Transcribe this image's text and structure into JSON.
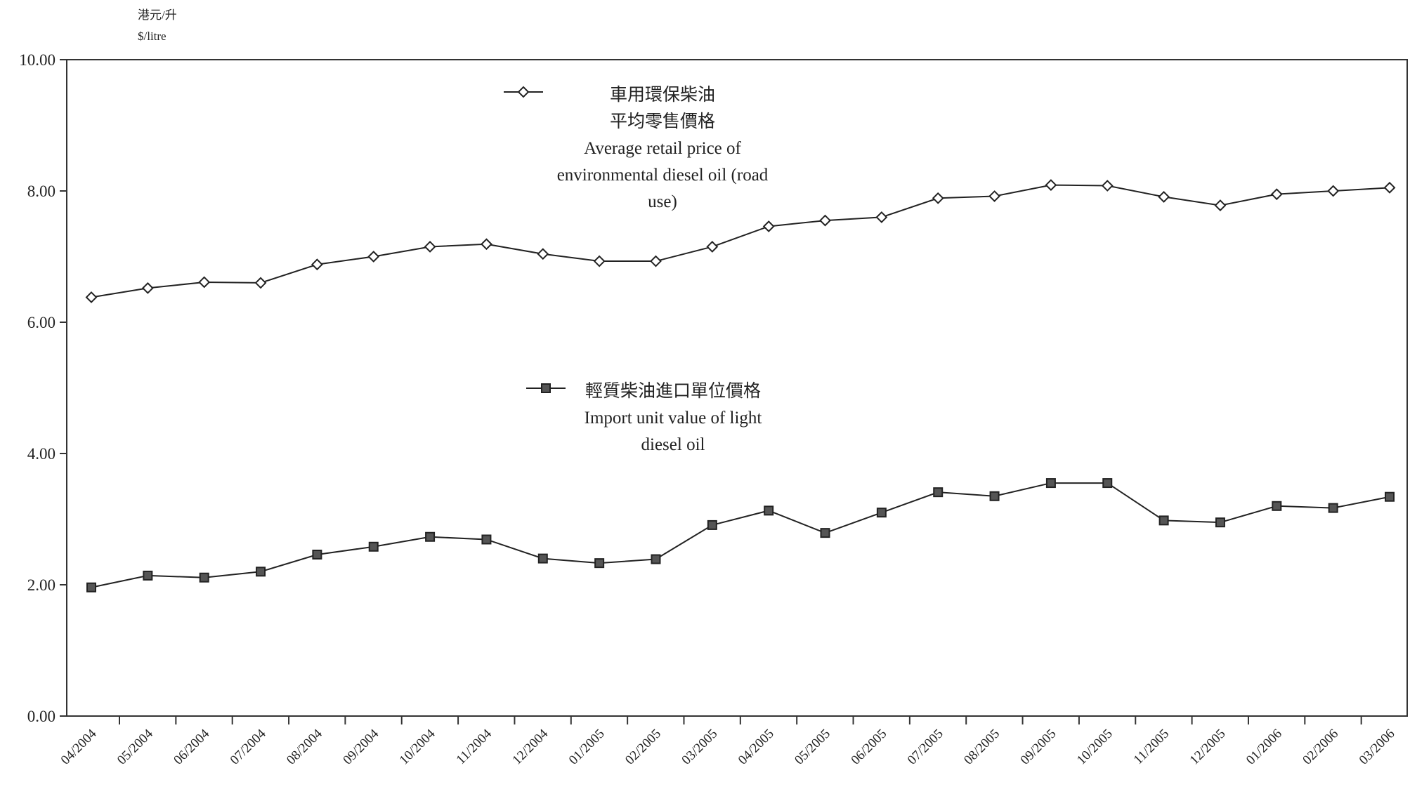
{
  "chart_data": {
    "type": "line",
    "ylabel_zh": "港元/升",
    "ylabel_en": "$/litre",
    "ylim": [
      0,
      10
    ],
    "yticks": [
      "0.00",
      "2.00",
      "4.00",
      "6.00",
      "8.00",
      "10.00"
    ],
    "grid": false,
    "x": [
      "04/2004",
      "05/2004",
      "06/2004",
      "07/2004",
      "08/2004",
      "09/2004",
      "10/2004",
      "11/2004",
      "12/2004",
      "01/2005",
      "02/2005",
      "03/2005",
      "04/2005",
      "05/2005",
      "06/2005",
      "07/2005",
      "08/2005",
      "09/2005",
      "10/2005",
      "11/2005",
      "12/2005",
      "01/2006",
      "02/2006",
      "03/2006"
    ],
    "series": [
      {
        "marker": "diamond-open",
        "color": "#222222",
        "legend_lines": [
          "車用環保柴油",
          "平均零售價格",
          "Average retail price of",
          "environmental diesel oil (road",
          "use)"
        ],
        "values": [
          6.38,
          6.52,
          6.61,
          6.6,
          6.88,
          7.0,
          7.15,
          7.19,
          7.04,
          6.93,
          6.93,
          7.15,
          7.46,
          7.55,
          7.6,
          7.89,
          7.92,
          8.09,
          8.08,
          7.91,
          7.78,
          7.95,
          8.0,
          8.05
        ]
      },
      {
        "marker": "square-filled",
        "color": "#222222",
        "legend_lines": [
          "輕質柴油進口單位價格",
          "Import unit value of light",
          "diesel oil"
        ],
        "values": [
          1.96,
          2.14,
          2.11,
          2.2,
          2.46,
          2.58,
          2.73,
          2.69,
          2.4,
          2.33,
          2.39,
          2.91,
          3.13,
          2.79,
          3.1,
          3.41,
          3.35,
          3.55,
          3.55,
          2.98,
          2.95,
          3.2,
          3.17,
          3.34
        ]
      }
    ]
  }
}
